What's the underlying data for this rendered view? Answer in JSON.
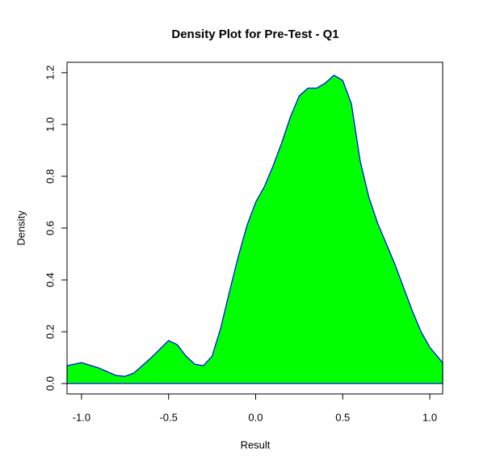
{
  "chart_data": {
    "type": "area",
    "title": "Density Plot for Pre-Test - Q1",
    "x_label": "Result",
    "y_label": "Density",
    "x": [
      -1.083,
      -1.0,
      -0.9,
      -0.8,
      -0.75,
      -0.7,
      -0.6,
      -0.5,
      -0.45,
      -0.4,
      -0.35,
      -0.3,
      -0.25,
      -0.2,
      -0.15,
      -0.1,
      -0.05,
      0.0,
      0.05,
      0.1,
      0.15,
      0.2,
      0.25,
      0.3,
      0.35,
      0.4,
      0.45,
      0.5,
      0.55,
      0.6,
      0.65,
      0.7,
      0.75,
      0.8,
      0.85,
      0.9,
      0.95,
      1.0,
      1.05,
      1.074
    ],
    "values": [
      0.069,
      0.081,
      0.06,
      0.031,
      0.028,
      0.04,
      0.1,
      0.166,
      0.15,
      0.106,
      0.075,
      0.069,
      0.106,
      0.216,
      0.356,
      0.49,
      0.61,
      0.7,
      0.76,
      0.84,
      0.93,
      1.03,
      1.11,
      1.14,
      1.14,
      1.16,
      1.19,
      1.17,
      1.08,
      0.86,
      0.72,
      0.62,
      0.54,
      0.46,
      0.37,
      0.28,
      0.2,
      0.14,
      0.1,
      0.08
    ],
    "color": "#00ff00",
    "line_color": "#0000ff",
    "xlim": [
      -1.083,
      1.074
    ],
    "ylim": [
      -0.04,
      1.24
    ],
    "xticks": [
      {
        "value": -1.0,
        "label": "-1.0"
      },
      -0.5,
      {
        "value": 0.0,
        "label": "0.0"
      },
      0.5,
      {
        "value": 1.0,
        "label": "1.0"
      }
    ],
    "yticks": [
      {
        "value": 0.0,
        "label": "0.0"
      },
      0.2,
      0.4,
      0.6,
      0.8,
      {
        "value": 1.0,
        "label": "1.0"
      },
      1.2
    ]
  }
}
